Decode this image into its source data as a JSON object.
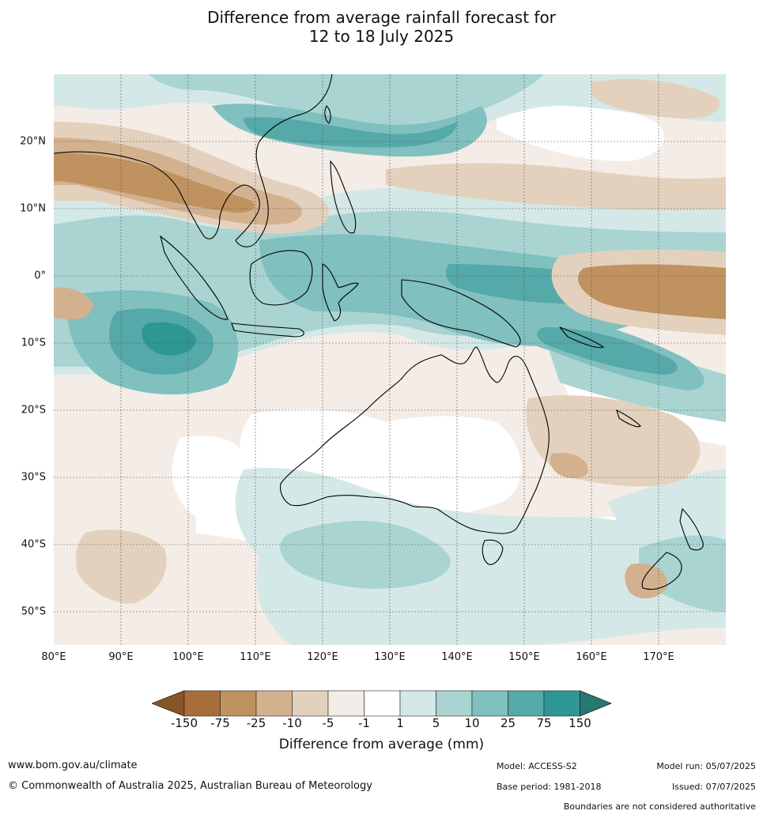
{
  "title_line1": "Difference from average rainfall forecast for",
  "title_line2": "12 to 18 July 2025",
  "map": {
    "lon_range": [
      80,
      180
    ],
    "lat_range": [
      -55,
      30
    ],
    "lat_labels": [
      "20°N",
      "10°N",
      "0°",
      "10°S",
      "20°S",
      "30°S",
      "40°S",
      "50°S"
    ],
    "lon_labels": [
      "80°E",
      "90°E",
      "100°E",
      "110°E",
      "120°E",
      "130°E",
      "140°E",
      "150°E",
      "160°E",
      "170°E"
    ]
  },
  "legend": {
    "title": "Difference from average (mm)",
    "ticks": [
      "-150",
      "-75",
      "-25",
      "-10",
      "-5",
      "-1",
      "1",
      "5",
      "10",
      "25",
      "75",
      "150"
    ],
    "colors": [
      "#a86d3a",
      "#c0925f",
      "#d3b18f",
      "#e4d1bd",
      "#f4ece6",
      "#ffffff",
      "#d4e9e7",
      "#a9d4d2",
      "#80c0bf",
      "#55a9a8",
      "#2e9794"
    ],
    "low_extension_color": "#8a5526",
    "high_extension_color": "#267873"
  },
  "footer": {
    "website": "www.bom.gov.au/climate",
    "copyright": "© Commonwealth of Australia 2025, Australian Bureau of Meteorology",
    "model": "Model: ACCESS-S2",
    "base_period": "Base period: 1981-2018",
    "model_run": "Model run: 05/07/2025",
    "issued": "Issued: 07/07/2025",
    "disclaimer": "Boundaries are not considered authoritative"
  }
}
